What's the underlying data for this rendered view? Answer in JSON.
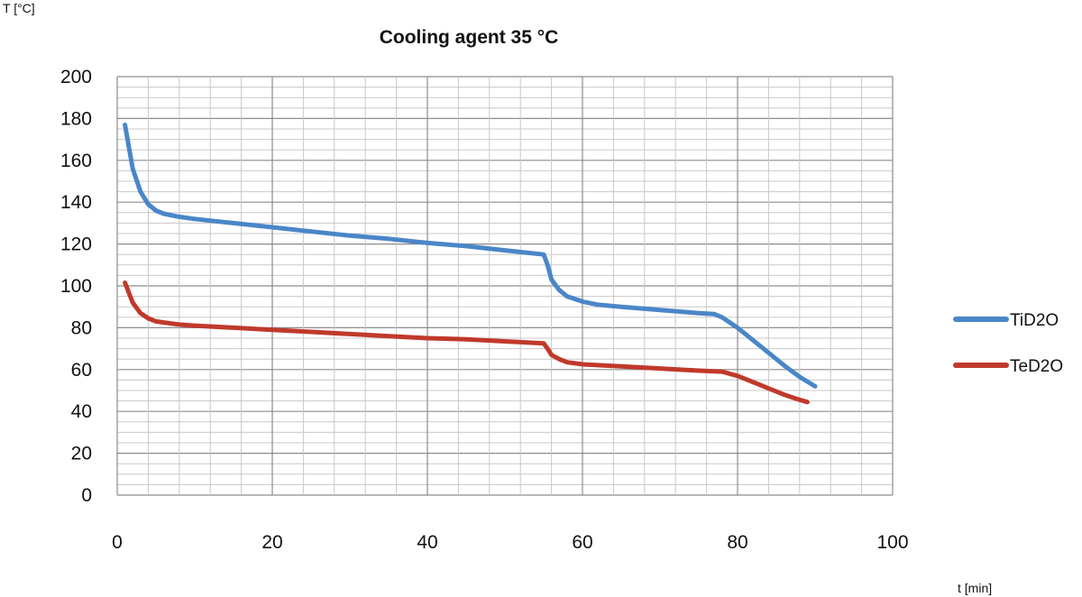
{
  "chart_data": {
    "type": "line",
    "title": "Cooling agent 35 °C",
    "xlabel": "t [min]",
    "ylabel": "T [°C]",
    "xlim": [
      0,
      100
    ],
    "ylim": [
      0,
      200
    ],
    "x_ticks": [
      "0",
      "20",
      "40",
      "60",
      "80",
      "100"
    ],
    "y_ticks": [
      "0",
      "20",
      "40",
      "60",
      "80",
      "100",
      "120",
      "140",
      "160",
      "180",
      "200"
    ],
    "grid": true,
    "legend_position": "right",
    "series": [
      {
        "name": "TiD2O",
        "color": "#4a86c8",
        "points": [
          [
            1,
            177
          ],
          [
            2,
            156
          ],
          [
            3,
            145
          ],
          [
            4,
            139
          ],
          [
            5,
            136
          ],
          [
            6,
            134.5
          ],
          [
            8,
            133
          ],
          [
            10,
            132
          ],
          [
            15,
            130
          ],
          [
            20,
            128
          ],
          [
            25,
            126
          ],
          [
            30,
            124
          ],
          [
            35,
            122.5
          ],
          [
            40,
            120.5
          ],
          [
            45,
            119
          ],
          [
            50,
            117
          ],
          [
            55,
            115
          ],
          [
            55.5,
            110
          ],
          [
            56,
            103
          ],
          [
            57,
            98
          ],
          [
            58,
            95
          ],
          [
            60,
            92.5
          ],
          [
            62,
            91
          ],
          [
            65,
            90
          ],
          [
            70,
            88.5
          ],
          [
            75,
            87
          ],
          [
            77,
            86.5
          ],
          [
            78,
            85
          ],
          [
            80,
            80
          ],
          [
            82,
            74
          ],
          [
            84,
            68
          ],
          [
            86,
            62
          ],
          [
            88,
            56.5
          ],
          [
            90,
            52
          ]
        ]
      },
      {
        "name": "TeD2O",
        "color": "#c0392b",
        "points": [
          [
            1,
            101.5
          ],
          [
            2,
            92
          ],
          [
            3,
            87
          ],
          [
            4,
            84.5
          ],
          [
            5,
            83
          ],
          [
            6,
            82.5
          ],
          [
            8,
            81.5
          ],
          [
            10,
            81
          ],
          [
            15,
            80
          ],
          [
            20,
            79
          ],
          [
            25,
            78
          ],
          [
            30,
            77
          ],
          [
            35,
            76
          ],
          [
            40,
            75
          ],
          [
            45,
            74.5
          ],
          [
            50,
            73.5
          ],
          [
            55,
            72.5
          ],
          [
            55.5,
            70
          ],
          [
            56,
            67
          ],
          [
            57,
            65
          ],
          [
            58,
            63.5
          ],
          [
            60,
            62.5
          ],
          [
            65,
            61.5
          ],
          [
            70,
            60.5
          ],
          [
            75,
            59.5
          ],
          [
            78,
            59
          ],
          [
            80,
            57
          ],
          [
            82,
            54
          ],
          [
            84,
            51
          ],
          [
            86,
            48
          ],
          [
            88,
            45.5
          ],
          [
            89,
            44.5
          ]
        ]
      }
    ]
  }
}
